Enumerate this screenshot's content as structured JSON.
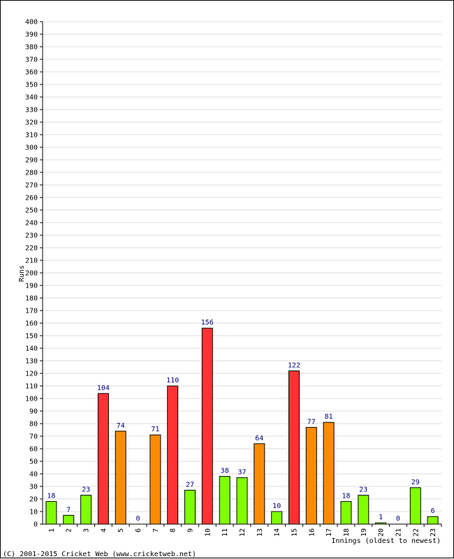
{
  "chart_data": {
    "type": "bar",
    "xlabel": "Innings (oldest to newest)",
    "ylabel": "Runs",
    "ylim": [
      0,
      400
    ],
    "ytick_step": 10,
    "grid": true,
    "categories": [
      "1",
      "2",
      "3",
      "4",
      "5",
      "6",
      "7",
      "8",
      "9",
      "10",
      "11",
      "12",
      "13",
      "14",
      "15",
      "16",
      "17",
      "18",
      "19",
      "20",
      "21",
      "22",
      "23"
    ],
    "values": [
      18,
      7,
      23,
      104,
      74,
      0,
      71,
      110,
      27,
      156,
      38,
      37,
      64,
      10,
      122,
      77,
      81,
      18,
      23,
      1,
      0,
      29,
      6
    ],
    "colors": {
      "under_50": "#80ff00",
      "fifty_to_99": "#ff8c00",
      "hundred_plus": "#ff3333",
      "outline": "#000000",
      "grid": "#dddddd",
      "data_label": "#000080"
    }
  },
  "footer": {
    "copyright": "(C) 2001-2015 Cricket Web (www.cricketweb.net)"
  }
}
